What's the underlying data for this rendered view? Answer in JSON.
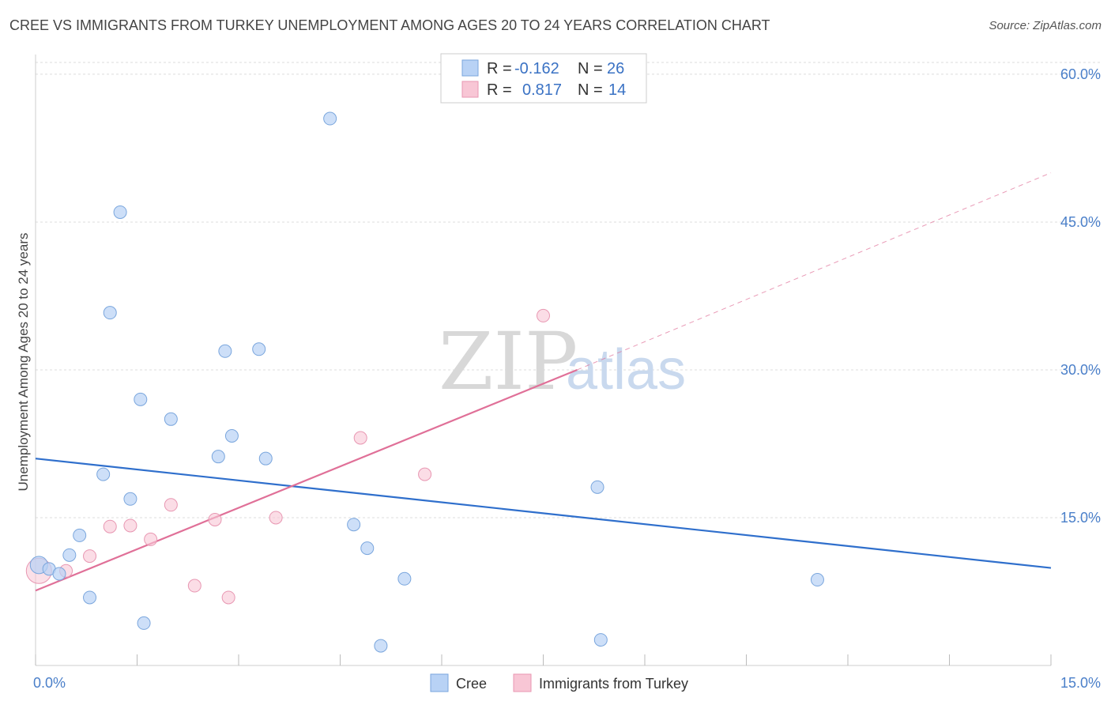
{
  "title": "CREE VS IMMIGRANTS FROM TURKEY UNEMPLOYMENT AMONG AGES 20 TO 24 YEARS CORRELATION CHART",
  "source": "Source: ZipAtlas.com",
  "watermark": {
    "zip": "ZIP",
    "atlas": "atlas"
  },
  "legend": {
    "r_label": "R =",
    "n_label": "N =",
    "rows": [
      {
        "r": "-0.162",
        "n": "26"
      },
      {
        "r": "0.817",
        "n": "14"
      }
    ]
  },
  "colors": {
    "cree_fill": "#b8d2f5",
    "cree_stroke": "#7aa6dd",
    "cree_line": "#2f6fcc",
    "turkey_fill": "#f8c6d5",
    "turkey_stroke": "#e897b2",
    "turkey_line": "#e07098"
  },
  "chart_data": {
    "type": "scatter",
    "xlabel": "",
    "ylabel": "Unemployment Among Ages 20 to 24 years",
    "xlim": [
      0,
      15
    ],
    "ylim": [
      0,
      62
    ],
    "x_tick_labels": [
      "0.0%",
      "15.0%"
    ],
    "y_tick_labels": [
      "15.0%",
      "30.0%",
      "45.0%",
      "60.0%"
    ],
    "y_tick_values": [
      15,
      30,
      45,
      60
    ],
    "series": [
      {
        "name": "Cree",
        "points": [
          [
            0.05,
            10.2
          ],
          [
            0.2,
            9.8
          ],
          [
            0.35,
            9.3
          ],
          [
            0.5,
            11.2
          ],
          [
            0.65,
            13.2
          ],
          [
            0.8,
            6.9
          ],
          [
            1.0,
            19.4
          ],
          [
            1.1,
            35.8
          ],
          [
            1.25,
            46.0
          ],
          [
            1.4,
            16.9
          ],
          [
            1.55,
            27.0
          ],
          [
            1.6,
            4.3
          ],
          [
            2.0,
            25.0
          ],
          [
            2.7,
            21.2
          ],
          [
            2.8,
            31.9
          ],
          [
            2.9,
            23.3
          ],
          [
            3.3,
            32.1
          ],
          [
            3.4,
            21.0
          ],
          [
            4.35,
            55.5
          ],
          [
            4.7,
            14.3
          ],
          [
            4.9,
            11.9
          ],
          [
            5.1,
            2.0
          ],
          [
            5.45,
            8.8
          ],
          [
            8.3,
            18.1
          ],
          [
            8.35,
            2.6
          ],
          [
            11.55,
            8.7
          ]
        ],
        "trend": {
          "x": [
            0.0,
            15.0
          ],
          "y": [
            21.0,
            9.9
          ]
        }
      },
      {
        "name": "Immigrants from Turkey",
        "points": [
          [
            0.05,
            9.6
          ],
          [
            0.45,
            9.6
          ],
          [
            0.8,
            11.1
          ],
          [
            1.1,
            14.1
          ],
          [
            1.4,
            14.2
          ],
          [
            1.7,
            12.8
          ],
          [
            2.0,
            16.3
          ],
          [
            2.35,
            8.1
          ],
          [
            2.65,
            14.8
          ],
          [
            2.85,
            6.9
          ],
          [
            3.55,
            15.0
          ],
          [
            4.8,
            23.1
          ],
          [
            5.75,
            19.4
          ],
          [
            7.5,
            35.5
          ]
        ],
        "trend": {
          "x": [
            0.0,
            8.0
          ],
          "y": [
            7.6,
            30.0
          ]
        },
        "trend_extension": {
          "x": [
            8.0,
            15.0
          ],
          "y": [
            30.0,
            50.0
          ]
        }
      }
    ],
    "legend_position": "top-center",
    "bottom_legend": [
      "Cree",
      "Immigrants from Turkey"
    ],
    "grid": true
  }
}
